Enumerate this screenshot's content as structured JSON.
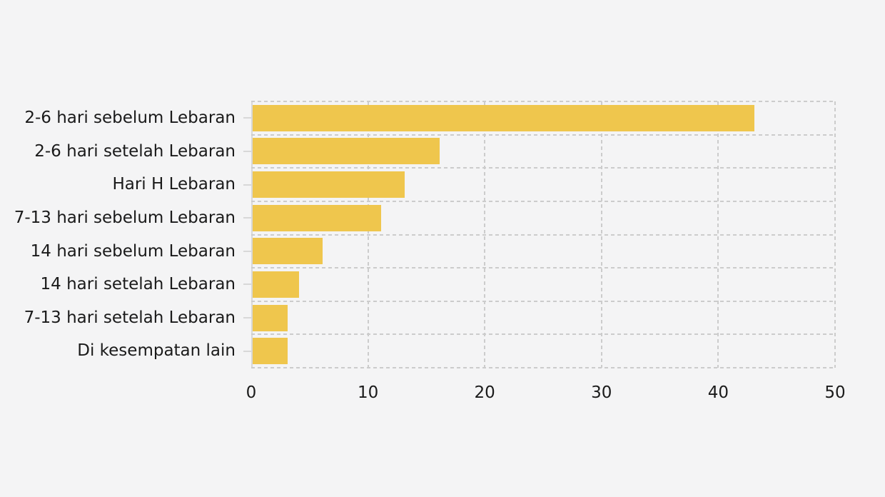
{
  "chart_data": {
    "type": "bar",
    "orientation": "horizontal",
    "title": "",
    "xlabel": "",
    "ylabel": "",
    "categories": [
      "2-6 hari sebelum Lebaran",
      "2-6 hari setelah Lebaran",
      "Hari H Lebaran",
      "7-13 hari sebelum Lebaran",
      "14 hari sebelum Lebaran",
      "14 hari setelah Lebaran",
      "7-13 hari setelah Lebaran",
      "Di kesempatan lain"
    ],
    "values": [
      43,
      16,
      13,
      11,
      6,
      4,
      3,
      3
    ],
    "xlim": [
      0,
      50
    ],
    "xticks": [
      0,
      10,
      20,
      30,
      40,
      50
    ],
    "grid": true,
    "grid_style": "dashed",
    "legend": false,
    "colors": {
      "bar": "#EFC64D",
      "background": "#F4F4F5",
      "gridline": "#CCCCCC",
      "axis": "#D8D8D8",
      "text": "#1A1A1A"
    }
  }
}
